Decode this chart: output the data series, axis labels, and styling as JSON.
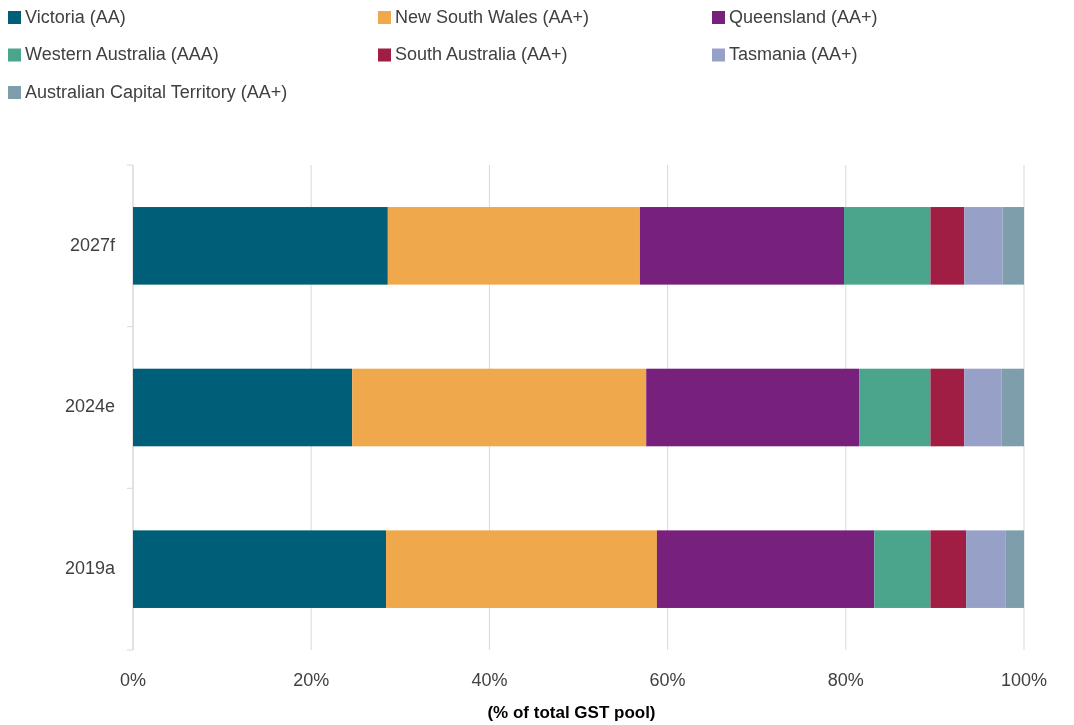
{
  "chart_data": {
    "type": "bar",
    "orientation": "horizontal",
    "stacked": true,
    "xlabel": "(% of total GST pool)",
    "categories": [
      "2027f",
      "2024e",
      "2019a"
    ],
    "series": [
      {
        "name": "Victoria (AA)",
        "color": "#005f78",
        "values": [
          28.6,
          24.6,
          28.4
        ]
      },
      {
        "name": "New South Wales (AA+)",
        "color": "#f0a84c",
        "values": [
          28.3,
          33.0,
          30.4
        ]
      },
      {
        "name": "Queensland (AA+)",
        "color": "#77217d",
        "values": [
          22.9,
          23.9,
          24.4
        ]
      },
      {
        "name": "Western Australia (AAA)",
        "color": "#4aa58c",
        "values": [
          9.7,
          8.0,
          6.3
        ]
      },
      {
        "name": "South Australia (AA+)",
        "color": "#a01d44",
        "values": [
          3.8,
          3.8,
          4.0
        ]
      },
      {
        "name": "Tasmania (AA+)",
        "color": "#97a1c7",
        "values": [
          4.3,
          4.2,
          4.4
        ]
      },
      {
        "name": "Australian Capital Territory (AA+)",
        "color": "#7f9eab",
        "values": [
          2.4,
          2.5,
          2.1
        ]
      }
    ],
    "xlim": [
      0,
      100
    ],
    "xticks": [
      {
        "value": 0,
        "label": "0%"
      },
      {
        "value": 20,
        "label": "20%"
      },
      {
        "value": 40,
        "label": "40%"
      },
      {
        "value": 60,
        "label": "60%"
      },
      {
        "value": 80,
        "label": "80%"
      },
      {
        "value": 100,
        "label": "100%"
      }
    ],
    "grid": "x",
    "legend": "top left"
  }
}
